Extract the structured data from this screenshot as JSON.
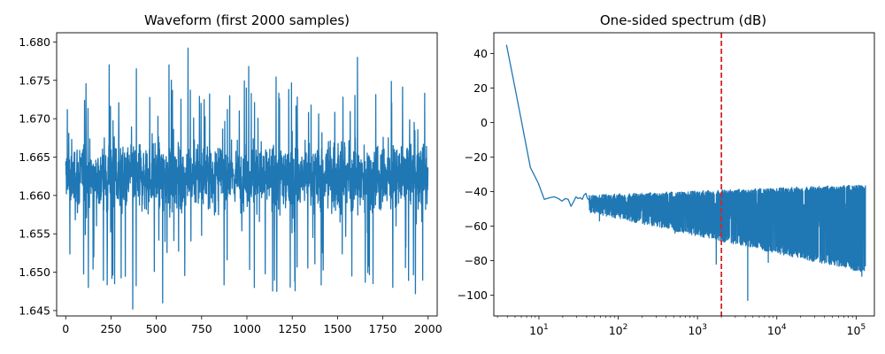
{
  "chart_data": [
    {
      "type": "line",
      "title": "Waveform (first 2000 samples)",
      "xlabel": "",
      "ylabel": "",
      "xlim": [
        -50,
        2050
      ],
      "ylim": [
        1.6443,
        1.6812
      ],
      "x_ticks": [
        0,
        250,
        500,
        750,
        1000,
        1250,
        1500,
        1750,
        2000
      ],
      "x_tick_labels": [
        "0",
        "250",
        "500",
        "750",
        "1000",
        "1250",
        "1500",
        "1750",
        "2000"
      ],
      "y_ticks": [
        1.645,
        1.65,
        1.655,
        1.66,
        1.665,
        1.67,
        1.675,
        1.68
      ],
      "y_tick_labels": [
        "1.645",
        "1.650",
        "1.655",
        "1.660",
        "1.665",
        "1.670",
        "1.675",
        "1.680"
      ],
      "grid": false,
      "series": [
        {
          "color": "#1f77b4",
          "x_range": [
            0,
            2000
          ],
          "n_samples": 2000,
          "mean": 1.6625,
          "band_low": 1.6555,
          "band_high": 1.6695,
          "typical_max": 1.6755,
          "typical_min": 1.6475,
          "max": 1.6792,
          "min": 1.6452,
          "extremes": [
            {
              "x": 125,
              "y": 1.648
            },
            {
              "x": 240,
              "y": 1.677
            },
            {
              "x": 270,
              "y": 1.6485
            },
            {
              "x": 370,
              "y": 1.6452
            },
            {
              "x": 390,
              "y": 1.6765
            },
            {
              "x": 535,
              "y": 1.646
            },
            {
              "x": 570,
              "y": 1.677
            },
            {
              "x": 675,
              "y": 1.6792
            },
            {
              "x": 1010,
              "y": 1.6768
            },
            {
              "x": 1165,
              "y": 1.6475
            },
            {
              "x": 1610,
              "y": 1.678
            },
            {
              "x": 1930,
              "y": 1.6472
            }
          ]
        }
      ]
    },
    {
      "type": "line",
      "title": "One-sided spectrum (dB)",
      "xlabel": "",
      "ylabel": "",
      "x_scale": "log",
      "xlim": [
        2.7,
        170000
      ],
      "ylim": [
        -112,
        52
      ],
      "x_ticks": [
        10,
        100,
        1000,
        10000,
        100000
      ],
      "x_tick_labels": [
        {
          "base": "10",
          "exp": "1"
        },
        {
          "base": "10",
          "exp": "2"
        },
        {
          "base": "10",
          "exp": "3"
        },
        {
          "base": "10",
          "exp": "4"
        },
        {
          "base": "10",
          "exp": "5"
        }
      ],
      "y_ticks": [
        -100,
        -80,
        -60,
        -40,
        -20,
        0,
        20,
        40
      ],
      "y_tick_labels": [
        "−100",
        "−80",
        "−60",
        "−40",
        "−20",
        "0",
        "20",
        "40"
      ],
      "grid": false,
      "reference_line": {
        "orientation": "vertical",
        "x": 2000,
        "color": "#d62728",
        "style": "dashed"
      },
      "series": [
        {
          "color": "#1f77b4",
          "leading_points": [
            {
              "x": 3.9,
              "y": 45
            },
            {
              "x": 4.9,
              "y": 22
            },
            {
              "x": 5.9,
              "y": 3
            },
            {
              "x": 7.8,
              "y": -26
            },
            {
              "x": 9.8,
              "y": -35
            },
            {
              "x": 11.7,
              "y": -44.5
            },
            {
              "x": 13.7,
              "y": -43.5
            },
            {
              "x": 15.6,
              "y": -43
            },
            {
              "x": 17.6,
              "y": -44
            },
            {
              "x": 19.5,
              "y": -45.5
            },
            {
              "x": 21.5,
              "y": -44
            },
            {
              "x": 23.4,
              "y": -44.5
            },
            {
              "x": 25.4,
              "y": -48.5
            },
            {
              "x": 27.3,
              "y": -46
            },
            {
              "x": 29.3,
              "y": -43
            },
            {
              "x": 31.2,
              "y": -44
            },
            {
              "x": 33.2,
              "y": -43.5
            },
            {
              "x": 35.2,
              "y": -44.5
            },
            {
              "x": 37.1,
              "y": -42
            },
            {
              "x": 39.1,
              "y": -41
            },
            {
              "x": 41,
              "y": -44
            },
            {
              "x": 43,
              "y": -45
            }
          ],
          "noise_floor": {
            "x_range": [
              43,
              131072
            ],
            "upper_start": -42,
            "upper_end": -36,
            "lower_start": -52,
            "lower_end": -87,
            "center_start": -47,
            "center_end": -55
          },
          "spikes": [
            {
              "x": 58,
              "y": -57
            },
            {
              "x": 520,
              "y": -64
            },
            {
              "x": 1720,
              "y": -82
            },
            {
              "x": 4300,
              "y": -103
            },
            {
              "x": 7800,
              "y": -81
            },
            {
              "x": 118000,
              "y": -89
            }
          ],
          "max_freq": 131072
        }
      ]
    }
  ]
}
